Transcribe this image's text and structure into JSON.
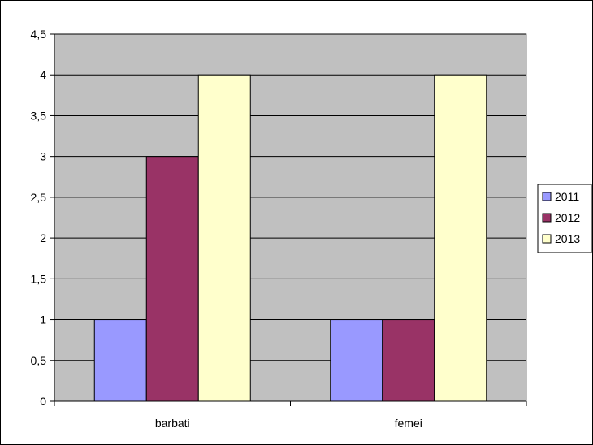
{
  "chart_data": {
    "type": "bar",
    "title": "",
    "xlabel": "",
    "ylabel": "",
    "categories": [
      "barbati",
      "femei"
    ],
    "series": [
      {
        "name": "2011",
        "values": [
          1,
          1
        ],
        "color": "#9999ff"
      },
      {
        "name": "2012",
        "values": [
          3,
          1
        ],
        "color": "#993366"
      },
      {
        "name": "2013",
        "values": [
          4,
          4
        ],
        "color": "#ffffcc"
      }
    ],
    "ylim": [
      0,
      4.5
    ],
    "y_ticks": [
      "0",
      "0,5",
      "1",
      "1,5",
      "2",
      "2,5",
      "3",
      "3,5",
      "4",
      "4,5"
    ],
    "grid": true,
    "plot_background": "#c0c0c0",
    "legend_position": "right"
  }
}
